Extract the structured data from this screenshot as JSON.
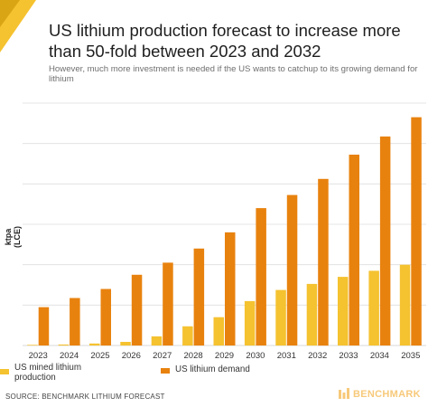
{
  "header": {
    "title": "US lithium production forecast to increase more than 50-fold between 2023 and 2032",
    "subtitle": "However, much more investment is needed if the US wants to catchup to its growing demand for lithium"
  },
  "footer": {
    "source": "SOURCE: BENCHMARK LITHIUM FORECAST",
    "brand": "BENCHMARK"
  },
  "colors": {
    "mined": "#f5c230",
    "demand": "#e8820e",
    "grid": "#dddddd",
    "logo": "#f5c230"
  },
  "icons": {
    "corner": "folded-corner-logo",
    "brand": "benchmark-logo-icon"
  },
  "chart_data": {
    "type": "bar",
    "categories": [
      "2023",
      "2024",
      "2025",
      "2026",
      "2027",
      "2028",
      "2029",
      "2030",
      "2031",
      "2032",
      "2033",
      "2034",
      "2035"
    ],
    "ylabel": "ktpa (LCE)",
    "ylim": [
      0,
      12
    ],
    "y_ticks_shown": false,
    "grid": true,
    "legend_position": "bottom",
    "series": [
      {
        "name": "US mined lithium production",
        "values": [
          0.03,
          0.05,
          0.1,
          0.18,
          0.45,
          0.95,
          1.4,
          2.2,
          2.75,
          3.05,
          3.4,
          3.7,
          4.0
        ]
      },
      {
        "name": "US lithium demand",
        "values": [
          1.9,
          2.35,
          2.8,
          3.5,
          4.1,
          4.8,
          5.6,
          6.8,
          7.45,
          8.25,
          9.45,
          10.35,
          11.3
        ]
      }
    ]
  }
}
